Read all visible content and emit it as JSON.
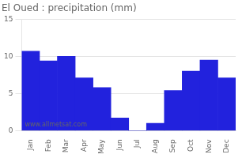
{
  "chart_data": {
    "type": "bar",
    "title": "El Oued : precipitation (mm)",
    "categories": [
      "Jan",
      "Feb",
      "Mar",
      "Apr",
      "May",
      "Jun",
      "Jul",
      "Aug",
      "Sep",
      "Oct",
      "Nov",
      "Dec"
    ],
    "values": [
      10.7,
      9.4,
      10.0,
      7.1,
      5.8,
      1.7,
      0.0,
      1.0,
      5.4,
      8.0,
      9.5,
      7.1
    ],
    "color": "#2222dd",
    "ylim": [
      0,
      15
    ],
    "yticks": [
      0,
      5,
      10,
      15
    ],
    "grid": true,
    "annotations": [
      "www.allmetsat.com"
    ]
  }
}
